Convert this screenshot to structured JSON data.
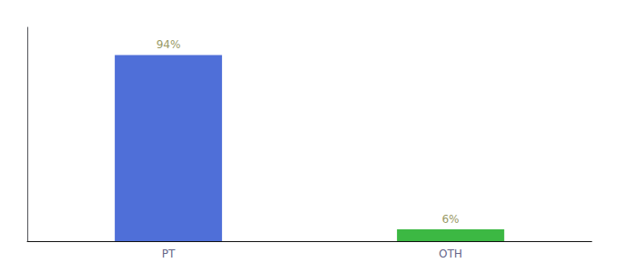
{
  "chart_data": {
    "type": "bar",
    "categories": [
      "PT",
      "OTH"
    ],
    "values": [
      94,
      6
    ],
    "value_labels": [
      "94%",
      "6%"
    ],
    "colors": [
      "#4f6fd8",
      "#3cb843"
    ],
    "ylim": [
      0,
      108
    ],
    "data_labels": true,
    "tick_labels": "x",
    "grid": false
  }
}
